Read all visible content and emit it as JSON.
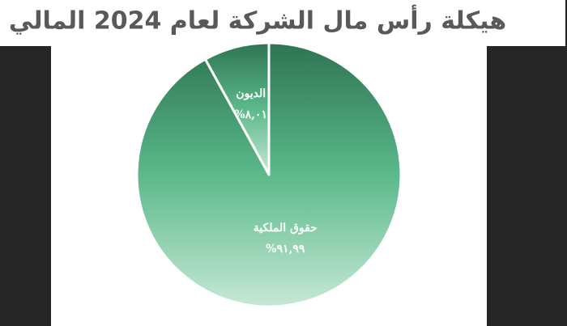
{
  "chart_data": {
    "type": "pie",
    "title": "هيكلة رأس مال الشركة لعام 2024 المالي",
    "categories": [
      "الديون",
      "حقوق الملكية"
    ],
    "values": [
      8.01,
      91.99
    ],
    "value_labels": [
      "٨,٠١%",
      "٩١,٩٩%"
    ],
    "gradient": [
      "#2e7453",
      "#5bb98a",
      "#c6e8d6"
    ]
  }
}
